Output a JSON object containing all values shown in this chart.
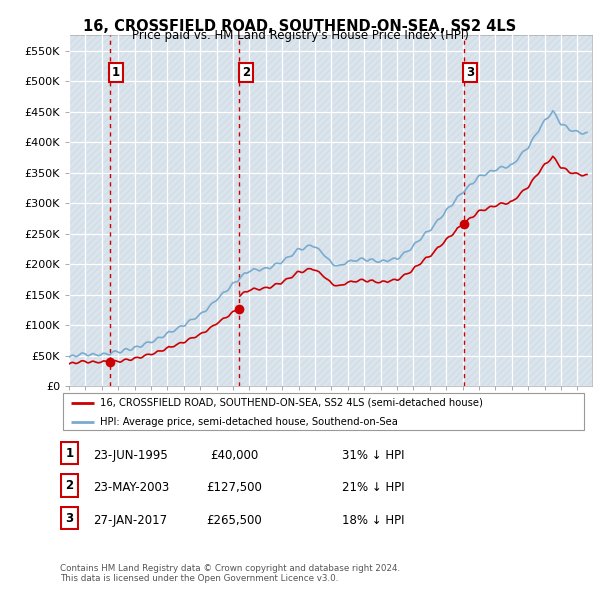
{
  "title": "16, CROSSFIELD ROAD, SOUTHEND-ON-SEA, SS2 4LS",
  "subtitle": "Price paid vs. HM Land Registry's House Price Index (HPI)",
  "ylim": [
    0,
    575000
  ],
  "yticks": [
    0,
    50000,
    100000,
    150000,
    200000,
    250000,
    300000,
    350000,
    400000,
    450000,
    500000,
    550000
  ],
  "ytick_labels": [
    "£0",
    "£50K",
    "£100K",
    "£150K",
    "£200K",
    "£250K",
    "£300K",
    "£350K",
    "£400K",
    "£450K",
    "£500K",
    "£550K"
  ],
  "sale_dates_year": [
    1995.474,
    2003.389,
    2017.073
  ],
  "sale_prices": [
    40000,
    127500,
    265500
  ],
  "transaction_labels": [
    "1",
    "2",
    "3"
  ],
  "red_line_color": "#cc0000",
  "blue_line_color": "#7aabcf",
  "legend_entries": [
    "16, CROSSFIELD ROAD, SOUTHEND-ON-SEA, SS2 4LS (semi-detached house)",
    "HPI: Average price, semi-detached house, Southend-on-Sea"
  ],
  "table_rows": [
    [
      "1",
      "23-JUN-1995",
      "£40,000",
      "31% ↓ HPI"
    ],
    [
      "2",
      "23-MAY-2003",
      "£127,500",
      "21% ↓ HPI"
    ],
    [
      "3",
      "27-JAN-2017",
      "£265,500",
      "18% ↓ HPI"
    ]
  ],
  "footer": "Contains HM Land Registry data © Crown copyright and database right 2024.\nThis data is licensed under the Open Government Licence v3.0.",
  "plot_bg_color": "#dce9f5",
  "hatch_color": "#c8c8c8"
}
